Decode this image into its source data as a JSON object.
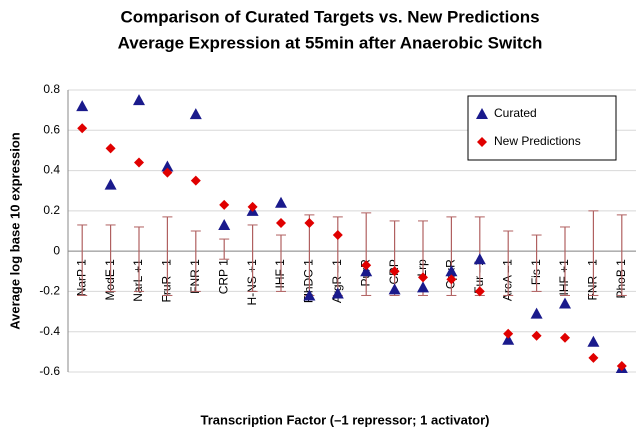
{
  "chart_data": {
    "type": "scatter",
    "title": "Comparison of Curated Targets vs. New Predictions",
    "subtitle": "Average Expression at 55min after Anaerobic Switch",
    "x_label": "Transcription Factor (–1 repressor; 1 activator)",
    "y_label": "Average log base 10 expression",
    "categories": [
      "NarP 1",
      "ModE 1",
      "NarL +1",
      "FruR –1",
      "FNR 1",
      "CRP 1",
      "H-NS +1",
      "IHF 1",
      "FlhDC 1",
      "ArgR –1",
      "PurR",
      "CRP",
      "Lrp",
      "CpxR",
      "Fur –1",
      "ArcA –1",
      "Fis 1",
      "IHF +1",
      "FNR –1",
      "PhoB 1"
    ],
    "series": [
      {
        "name": "Curated",
        "color": "#1a1a8c",
        "marker": "triangle",
        "values": [
          0.72,
          0.33,
          0.75,
          0.42,
          0.68,
          0.13,
          0.2,
          0.24,
          -0.22,
          -0.21,
          -0.1,
          -0.19,
          -0.18,
          -0.1,
          -0.04,
          -0.44,
          -0.31,
          -0.26,
          -0.45,
          -0.58
        ]
      },
      {
        "name": "New Predictions",
        "color": "#e00000",
        "marker": "diamond",
        "values": [
          0.61,
          0.51,
          0.44,
          0.39,
          0.35,
          0.23,
          0.22,
          0.14,
          0.14,
          0.08,
          -0.07,
          -0.1,
          -0.13,
          -0.14,
          -0.2,
          -0.41,
          -0.42,
          -0.43,
          -0.53,
          -0.57
        ]
      }
    ],
    "ranges": {
      "color": "#b06060",
      "low": [
        -0.22,
        -0.2,
        -0.2,
        -0.22,
        -0.2,
        -0.04,
        -0.2,
        -0.2,
        -0.22,
        -0.22,
        -0.22,
        -0.22,
        -0.22,
        -0.22,
        -0.22,
        -0.22,
        -0.2,
        -0.22,
        -0.22,
        -0.22
      ],
      "high": [
        0.13,
        0.13,
        0.12,
        0.17,
        0.1,
        0.06,
        0.13,
        0.08,
        0.18,
        0.17,
        0.19,
        0.15,
        0.15,
        0.17,
        0.17,
        0.1,
        0.08,
        0.12,
        0.2,
        0.18
      ]
    },
    "ylim": [
      -0.6,
      0.8
    ],
    "yticks": [
      0.8,
      0.6,
      0.4,
      0.2,
      0,
      -0.2,
      -0.4,
      -0.6
    ],
    "grid": true,
    "legend": "upper-right"
  }
}
